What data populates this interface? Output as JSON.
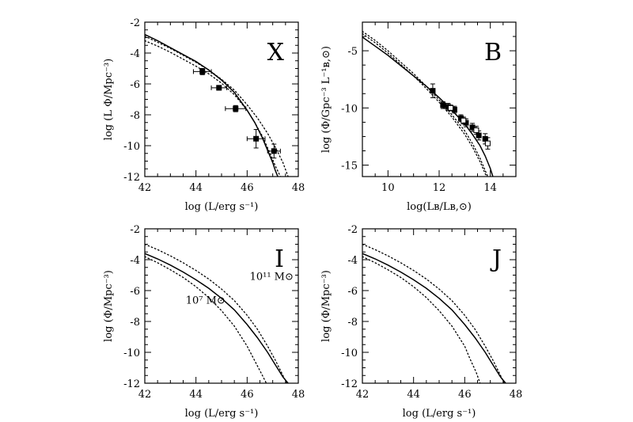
{
  "chart_data": [
    {
      "id": "X",
      "type": "line",
      "letter": "X",
      "xlabel": "log (L/erg s⁻¹)",
      "ylabel": "log (L Φ/Mpc⁻³)",
      "xlim": [
        42,
        48
      ],
      "ylim": [
        -12,
        -2
      ],
      "xticks": [
        42,
        44,
        46,
        48
      ],
      "yticks": [
        -12,
        -10,
        -8,
        -6,
        -4,
        -2
      ],
      "series": [
        {
          "style": "solid",
          "x": [
            42,
            42.5,
            43,
            43.5,
            44,
            44.5,
            45,
            45.5,
            46,
            46.3,
            46.6,
            46.8,
            47,
            47.1,
            47.2
          ],
          "y": [
            -2.8,
            -3.2,
            -3.65,
            -4.1,
            -4.55,
            -5.1,
            -5.75,
            -6.55,
            -7.7,
            -8.5,
            -9.5,
            -10.3,
            -11.1,
            -11.6,
            -12
          ]
        },
        {
          "style": "dotted",
          "x": [
            42,
            42.5,
            43,
            43.5,
            44,
            44.5,
            45,
            45.5,
            46,
            46.3,
            46.6,
            46.9,
            47.1,
            47.3
          ],
          "y": [
            -3.2,
            -3.55,
            -3.95,
            -4.4,
            -4.85,
            -5.35,
            -5.95,
            -6.7,
            -7.7,
            -8.5,
            -9.4,
            -10.5,
            -11.3,
            -12
          ]
        },
        {
          "style": "dotted",
          "x": [
            42,
            42.5,
            43,
            43.5,
            44,
            44.5,
            45,
            45.5,
            46,
            46.4,
            46.8,
            47.1,
            47.4,
            47.6
          ],
          "y": [
            -2.9,
            -3.3,
            -3.7,
            -4.15,
            -4.6,
            -5.1,
            -5.7,
            -6.4,
            -7.35,
            -8.2,
            -9.2,
            -10.1,
            -11.1,
            -12
          ]
        }
      ],
      "points": [
        {
          "x": 44.25,
          "y": -5.2,
          "xerr": 0.35,
          "yerr": 0.2
        },
        {
          "x": 44.9,
          "y": -6.25,
          "xerr": 0.3,
          "yerr": 0.15
        },
        {
          "x": 45.55,
          "y": -7.6,
          "xerr": 0.4,
          "yerr": 0.2
        },
        {
          "x": 46.35,
          "y": -9.55,
          "xerr": 0.35,
          "yerr": 0.6
        },
        {
          "x": 47.05,
          "y": -10.35,
          "xerr": 0.25,
          "yerr": 0.45
        }
      ]
    },
    {
      "id": "B",
      "type": "line",
      "letter": "B",
      "xlabel": "log(Lʙ/Lʙ,⊙)",
      "ylabel": "log (Φ/Gpc⁻³ L⁻¹ʙ,⊙)",
      "xlim": [
        9,
        15
      ],
      "ylim": [
        -16,
        -2.5
      ],
      "xticks": [
        10,
        12,
        14
      ],
      "yticks": [
        -15,
        -10,
        -5
      ],
      "series": [
        {
          "style": "solid",
          "x": [
            9,
            9.5,
            10,
            10.5,
            11,
            11.5,
            12,
            12.5,
            13,
            13.3,
            13.6,
            13.8,
            14,
            14.1
          ],
          "y": [
            -3.8,
            -4.6,
            -5.4,
            -6.3,
            -7.2,
            -8.1,
            -9.1,
            -10.2,
            -11.4,
            -12.3,
            -13.3,
            -14.2,
            -15.3,
            -16
          ]
        },
        {
          "style": "dotted",
          "x": [
            9,
            9.5,
            10,
            10.5,
            11,
            11.5,
            12,
            12.5,
            13,
            13.3,
            13.6,
            13.85
          ],
          "y": [
            -3.5,
            -4.3,
            -5.2,
            -6.2,
            -7.2,
            -8.3,
            -9.5,
            -10.8,
            -12.3,
            -13.4,
            -14.7,
            -16
          ]
        },
        {
          "style": "dotted",
          "x": [
            9,
            9.5,
            10,
            10.5,
            11,
            11.5,
            12,
            12.5,
            13,
            13.3,
            13.6,
            13.9
          ],
          "y": [
            -3.3,
            -4.1,
            -5.0,
            -6.0,
            -7.0,
            -8.1,
            -9.3,
            -10.6,
            -12.0,
            -13.1,
            -14.4,
            -16
          ]
        }
      ],
      "points": [
        {
          "x": 11.75,
          "y": -8.5,
          "yerr": 0.6,
          "style": "filled"
        },
        {
          "x": 12.15,
          "y": -9.75,
          "yerr": 0.3,
          "style": "filled"
        },
        {
          "x": 12.35,
          "y": -9.9,
          "yerr": 0.3,
          "style": "filled"
        },
        {
          "x": 12.6,
          "y": -10.15,
          "yerr": 0.3,
          "style": "filled"
        },
        {
          "x": 12.85,
          "y": -10.9,
          "yerr": 0.3,
          "style": "filled"
        },
        {
          "x": 13.05,
          "y": -11.3,
          "yerr": 0.35,
          "style": "filled"
        },
        {
          "x": 13.3,
          "y": -11.7,
          "yerr": 0.35,
          "style": "filled"
        },
        {
          "x": 13.55,
          "y": -12.4,
          "yerr": 0.4,
          "style": "filled"
        },
        {
          "x": 13.8,
          "y": -12.7,
          "yerr": 0.45,
          "style": "filled"
        },
        {
          "x": 12.45,
          "y": -10.0,
          "yerr": 0.25,
          "style": "open"
        },
        {
          "x": 12.95,
          "y": -11.1,
          "yerr": 0.3,
          "style": "open"
        },
        {
          "x": 13.45,
          "y": -11.95,
          "yerr": 0.35,
          "style": "open"
        },
        {
          "x": 13.9,
          "y": -13.1,
          "yerr": 0.5,
          "style": "open"
        }
      ]
    },
    {
      "id": "I",
      "type": "line",
      "letter": "I",
      "xlabel": "log (L/erg s⁻¹)",
      "ylabel": "log (Φ/Mpc⁻³)",
      "xlim": [
        42,
        48
      ],
      "ylim": [
        -12,
        -2
      ],
      "xticks": [
        42,
        44,
        46,
        48
      ],
      "yticks": [
        -12,
        -10,
        -8,
        -6,
        -4,
        -2
      ],
      "annotations": [
        {
          "text": "10¹¹ M⊙",
          "x": 46.1,
          "y": -5.3
        },
        {
          "text": "10⁷ M⊙",
          "x": 43.6,
          "y": -6.85
        }
      ],
      "series": [
        {
          "style": "solid",
          "x": [
            42,
            42.5,
            43,
            43.5,
            44,
            44.5,
            45,
            45.5,
            46,
            46.4,
            46.8,
            47.1,
            47.4,
            47.6
          ],
          "y": [
            -3.6,
            -3.95,
            -4.35,
            -4.8,
            -5.3,
            -5.85,
            -6.5,
            -7.25,
            -8.2,
            -9.05,
            -10.0,
            -10.8,
            -11.6,
            -12
          ]
        },
        {
          "style": "dotted",
          "x": [
            42,
            42.5,
            43,
            43.5,
            44,
            44.5,
            45,
            45.5,
            46,
            46.4,
            46.8,
            47.1,
            47.4,
            47.55
          ],
          "y": [
            -3.0,
            -3.35,
            -3.75,
            -4.2,
            -4.7,
            -5.25,
            -5.9,
            -6.65,
            -7.6,
            -8.5,
            -9.6,
            -10.5,
            -11.5,
            -12
          ]
        },
        {
          "style": "dotted",
          "x": [
            42,
            42.5,
            43,
            43.5,
            44,
            44.5,
            45,
            45.5,
            46,
            46.3,
            46.55,
            46.75
          ],
          "y": [
            -3.8,
            -4.2,
            -4.65,
            -5.15,
            -5.75,
            -6.45,
            -7.3,
            -8.3,
            -9.6,
            -10.55,
            -11.35,
            -12
          ]
        }
      ]
    },
    {
      "id": "J",
      "type": "line",
      "letter": "J",
      "xlabel": "log (L/erg s⁻¹)",
      "ylabel": "log (Φ/Mpc⁻³)",
      "xlim": [
        42,
        48
      ],
      "ylim": [
        -12,
        -2
      ],
      "xticks": [
        42,
        44,
        46,
        48
      ],
      "yticks": [
        -12,
        -10,
        -8,
        -6,
        -4,
        -2
      ],
      "series": [
        {
          "style": "solid",
          "x": [
            42,
            42.5,
            43,
            43.5,
            44,
            44.5,
            45,
            45.5,
            46,
            46.4,
            46.8,
            47.1,
            47.4,
            47.6
          ],
          "y": [
            -3.6,
            -3.95,
            -4.35,
            -4.8,
            -5.3,
            -5.85,
            -6.5,
            -7.25,
            -8.2,
            -9.05,
            -10.0,
            -10.8,
            -11.6,
            -12
          ]
        },
        {
          "style": "dotted",
          "x": [
            42,
            42.5,
            43,
            43.5,
            44,
            44.5,
            45,
            45.5,
            46,
            46.4,
            46.8,
            47.1,
            47.4,
            47.55
          ],
          "y": [
            -3.0,
            -3.35,
            -3.75,
            -4.2,
            -4.7,
            -5.25,
            -5.9,
            -6.65,
            -7.6,
            -8.5,
            -9.6,
            -10.5,
            -11.5,
            -12
          ]
        },
        {
          "style": "dotted",
          "x": [
            42,
            42.5,
            43,
            43.5,
            44,
            44.5,
            45,
            45.5,
            46,
            46.2,
            46.45,
            46.6
          ],
          "y": [
            -3.8,
            -4.2,
            -4.65,
            -5.15,
            -5.75,
            -6.45,
            -7.3,
            -8.3,
            -9.6,
            -10.4,
            -11.3,
            -12
          ]
        }
      ]
    }
  ]
}
